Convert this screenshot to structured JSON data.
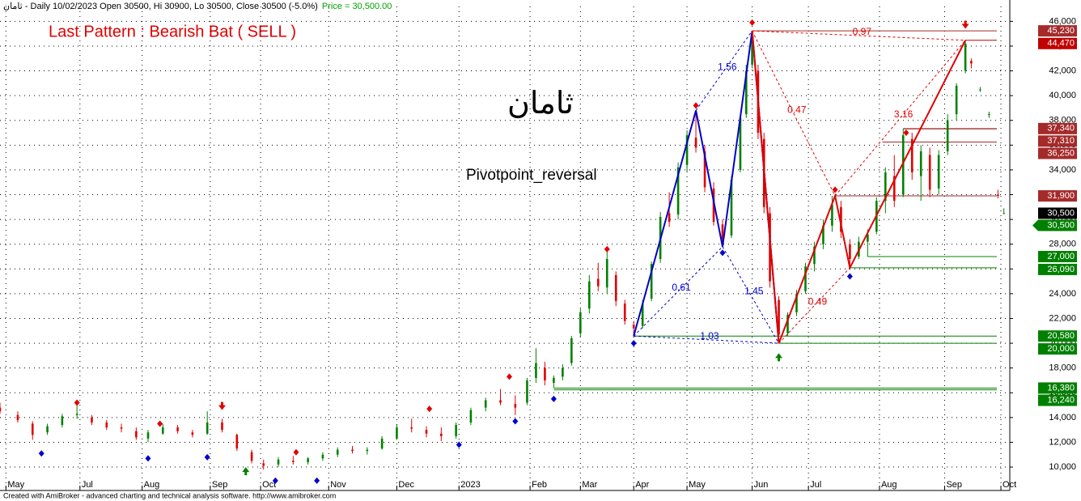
{
  "chart_data": {
    "type": "candlestick",
    "header": "ثامان - Daily 10/02/2023 Open 30500, Hi 30900, Lo 30500, Close 30500 (-5.0%)",
    "price_text": "Price = 30,500.00",
    "title": "Last Pattern : Bearish Bat ( SELL )",
    "symbol": "ثامان",
    "subtitle": "Pivotpoint_reversal",
    "footer": "Created with AmiBroker - advanced charting and technical analysis software. http://www.amibroker.com",
    "xlim": [
      0,
      341
    ],
    "ylim": [
      8500,
      47200
    ],
    "grid": true,
    "up_color": "#008000",
    "down_color": "#e00000",
    "xticks": [
      {
        "value": 2,
        "label": "May"
      },
      {
        "value": 27,
        "label": "Jul"
      },
      {
        "value": 48,
        "label": "Aug"
      },
      {
        "value": 71,
        "label": "Sep"
      },
      {
        "value": 88,
        "label": "Oct"
      },
      {
        "value": 111,
        "label": "Nov"
      },
      {
        "value": 134,
        "label": "Dec"
      },
      {
        "value": 155,
        "label": "2023"
      },
      {
        "value": 179,
        "label": "Feb"
      },
      {
        "value": 196,
        "label": "Mar"
      },
      {
        "value": 214,
        "label": "Apr"
      },
      {
        "value": 232,
        "label": "May"
      },
      {
        "value": 254,
        "label": "Jun"
      },
      {
        "value": 273,
        "label": "Jul"
      },
      {
        "value": 297,
        "label": "Aug"
      },
      {
        "value": 319,
        "label": "Sep"
      },
      {
        "value": 338,
        "label": "Oct"
      }
    ],
    "yticks": [
      {
        "value": 10000,
        "label": "10,000"
      },
      {
        "value": 12000,
        "label": "12,000"
      },
      {
        "value": 14000,
        "label": "14,000"
      },
      {
        "value": 16000,
        "label": "16,000"
      },
      {
        "value": 18000,
        "label": "18,000"
      },
      {
        "value": 20000,
        "label": "20,000"
      },
      {
        "value": 22000,
        "label": "22,000"
      },
      {
        "value": 24000,
        "label": "24,000"
      },
      {
        "value": 26000,
        "label": "26,000"
      },
      {
        "value": 28000,
        "label": "28,000"
      },
      {
        "value": 30000,
        "label": "30,000"
      },
      {
        "value": 32000,
        "label": "32,000"
      },
      {
        "value": 34000,
        "label": "34,000"
      },
      {
        "value": 36000,
        "label": "36,000"
      },
      {
        "value": 38000,
        "label": "38,000"
      },
      {
        "value": 40000,
        "label": "40,000"
      },
      {
        "value": 42000,
        "label": "42,000"
      },
      {
        "value": 44000,
        "label": "44,000"
      },
      {
        "value": 46000,
        "label": "46,000"
      }
    ],
    "candles": {
      "x": [
        0,
        6,
        11,
        16,
        21,
        26,
        31,
        36,
        41,
        46,
        50,
        55,
        60,
        65,
        70,
        75,
        80,
        85,
        89,
        94,
        99,
        104,
        109,
        114,
        119,
        124,
        129,
        134,
        139,
        144,
        149,
        154,
        159,
        164,
        169,
        174,
        178,
        181,
        184,
        187,
        190,
        193,
        196,
        199,
        202,
        205,
        208,
        211,
        214,
        217,
        220,
        223,
        226,
        229,
        232,
        235,
        238,
        241,
        244,
        247,
        250,
        252,
        254,
        256,
        258,
        260,
        263,
        266,
        269,
        272,
        275,
        278,
        281,
        284,
        287,
        290,
        293,
        296,
        299,
        302,
        305,
        308,
        311,
        314,
        317,
        320,
        323,
        326,
        328,
        331,
        334,
        337,
        339
      ],
      "open": [
        14800,
        14200,
        13500,
        12800,
        13400,
        14200,
        14000,
        13600,
        13200,
        12900,
        12300,
        12700,
        13200,
        12800,
        12700,
        13600,
        12600,
        11200,
        10300,
        10200,
        10500,
        10400,
        10700,
        11000,
        11400,
        11300,
        11500,
        12300,
        13200,
        13000,
        12700,
        12500,
        13600,
        14800,
        15400,
        15100,
        15200,
        17200,
        18000,
        16800,
        17300,
        18400,
        20800,
        22800,
        25200,
        24500,
        25500,
        23200,
        21500,
        21400,
        23600,
        26800,
        30500,
        30400,
        34400,
        36600,
        35500,
        32500,
        29600,
        28700,
        34000,
        38500,
        42500,
        42000,
        36500,
        30500,
        23500,
        20800,
        22500,
        24200,
        26400,
        28000,
        29500,
        31000,
        28000,
        27000,
        28200,
        29000,
        31500,
        33500,
        32000,
        36500,
        33500,
        35200,
        32500,
        35500,
        38500,
        42000,
        42800,
        40500,
        38500,
        32000,
        30500
      ],
      "high": [
        15200,
        14500,
        13700,
        13500,
        14300,
        15000,
        14200,
        13800,
        13500,
        13200,
        13000,
        13500,
        13400,
        13000,
        14500,
        13900,
        12700,
        11400,
        10600,
        10800,
        10900,
        10800,
        11200,
        11600,
        11700,
        11600,
        12500,
        13400,
        13900,
        13300,
        13200,
        13600,
        14800,
        15600,
        16300,
        15800,
        17200,
        19600,
        18500,
        17400,
        18300,
        20600,
        22800,
        25500,
        26500,
        27500,
        25800,
        23500,
        21800,
        23500,
        26600,
        30600,
        32200,
        34600,
        37200,
        38800,
        36000,
        33000,
        30000,
        33500,
        38500,
        42500,
        45230,
        42500,
        37000,
        31000,
        23800,
        22500,
        24300,
        26500,
        28200,
        30000,
        31900,
        31500,
        28400,
        28600,
        29200,
        31800,
        34200,
        35200,
        37340,
        37000,
        36000,
        35800,
        35600,
        38500,
        41000,
        44470,
        43000,
        40700,
        38700,
        32400,
        30900
      ],
      "low": [
        14300,
        13600,
        12200,
        12600,
        13200,
        13900,
        13400,
        13000,
        12800,
        12200,
        12000,
        12600,
        12700,
        12400,
        12600,
        12800,
        11300,
        10300,
        9800,
        10000,
        10200,
        10200,
        10500,
        10800,
        11100,
        11000,
        11400,
        12200,
        12800,
        12400,
        12100,
        12300,
        13400,
        14500,
        15000,
        14200,
        15000,
        16800,
        16600,
        16400,
        17000,
        18200,
        20500,
        22400,
        24200,
        24000,
        23000,
        21500,
        20500,
        21200,
        23400,
        26500,
        29400,
        30000,
        33800,
        35400,
        32200,
        29500,
        27800,
        28500,
        33800,
        38200,
        42200,
        36500,
        30500,
        24500,
        20000,
        20600,
        22200,
        24000,
        25800,
        27600,
        29000,
        28500,
        26090,
        26800,
        27000,
        28800,
        30500,
        31000,
        31800,
        33200,
        31500,
        31800,
        32000,
        35200,
        38000,
        41800,
        42200,
        40300,
        38200,
        31700,
        30500
      ],
      "close": [
        14500,
        13800,
        12600,
        13300,
        14100,
        14300,
        13600,
        13200,
        13100,
        12400,
        12800,
        13200,
        12900,
        12600,
        13600,
        13000,
        11500,
        10500,
        10100,
        10600,
        10400,
        10700,
        11000,
        11400,
        11300,
        11400,
        12300,
        13200,
        13100,
        12700,
        12500,
        13400,
        14600,
        15400,
        15200,
        14800,
        17000,
        18400,
        17000,
        17200,
        18000,
        20400,
        22500,
        25000,
        24600,
        26800,
        23400,
        21800,
        21200,
        23200,
        26400,
        30200,
        29800,
        34200,
        36800,
        35800,
        32600,
        29800,
        28400,
        33200,
        38200,
        42000,
        44800,
        37000,
        31000,
        25000,
        20700,
        22300,
        24000,
        26200,
        27800,
        29500,
        31200,
        29000,
        26800,
        28200,
        28800,
        31500,
        33800,
        31500,
        36800,
        33800,
        35500,
        32400,
        35200,
        38000,
        40800,
        44200,
        42600,
        40500,
        38500,
        31900,
        30500
      ]
    },
    "pivots_high": {
      "x": [
        26,
        54,
        100,
        145,
        172,
        205,
        235,
        254,
        282,
        306
      ],
      "y": [
        15200,
        13500,
        11200,
        14700,
        17300,
        27600,
        39200,
        45900,
        32400,
        37000
      ]
    },
    "pivots_low": {
      "x": [
        14,
        50,
        70,
        93,
        107,
        155,
        174,
        187,
        214,
        244,
        287
      ],
      "y": [
        11100,
        10700,
        10800,
        8900,
        8900,
        11800,
        13700,
        15500,
        20000,
        27300,
        25400
      ]
    },
    "sell_arrows": {
      "x": [
        75,
        326
      ],
      "y": [
        14800,
        45600
      ]
    },
    "buy_arrows": {
      "x": [
        83,
        263
      ],
      "y": [
        9800,
        19000
      ]
    },
    "patterns": [
      {
        "color": "#0000cc",
        "x": [
          214,
          235,
          244,
          254,
          263
        ],
        "y": [
          20580,
          38800,
          27800,
          45230,
          20000
        ],
        "ratios": [
          0.61,
          1.56,
          1.45,
          1.03
        ]
      },
      {
        "color": "#e00000",
        "x": [
          254,
          263,
          282,
          287,
          326
        ],
        "y": [
          45230,
          20000,
          31900,
          26090,
          44470
        ],
        "ratios": [
          0.47,
          0.49,
          3.16,
          0.97
        ]
      }
    ],
    "levels": [
      {
        "value": 45230,
        "label": "45,230",
        "color": "#a52a2a",
        "x": 254
      },
      {
        "value": 44470,
        "label": "44,470",
        "color": "#c00000",
        "x": 326
      },
      {
        "value": 37340,
        "label": "37,340",
        "color": "#a52a2a",
        "x": 305
      },
      {
        "value": 37310,
        "label": "37,310",
        "color": "#a52a2a",
        "x": 305
      },
      {
        "value": 36250,
        "label": "36,250",
        "color": "#a52a2a",
        "x": 298
      },
      {
        "value": 31900,
        "label": "31,900",
        "color": "#a52a2a",
        "x": 282
      },
      {
        "value": 30500,
        "label": "30,500",
        "color": "#000000"
      },
      {
        "value": 30500,
        "label": "30,500",
        "color": "#008000"
      },
      {
        "value": 27000,
        "label": "27,000",
        "color": "#008000",
        "x": 293
      },
      {
        "value": 26090,
        "label": "26,090",
        "color": "#008000",
        "x": 287
      },
      {
        "value": 20580,
        "label": "20,580",
        "color": "#008000",
        "x": 214
      },
      {
        "value": 20000,
        "label": "20,000",
        "color": "#008000",
        "x": 263
      },
      {
        "value": 16380,
        "label": "16,380",
        "color": "#008000",
        "x": 187
      },
      {
        "value": 16240,
        "label": "16,240",
        "color": "#008000",
        "x": 187
      }
    ]
  }
}
